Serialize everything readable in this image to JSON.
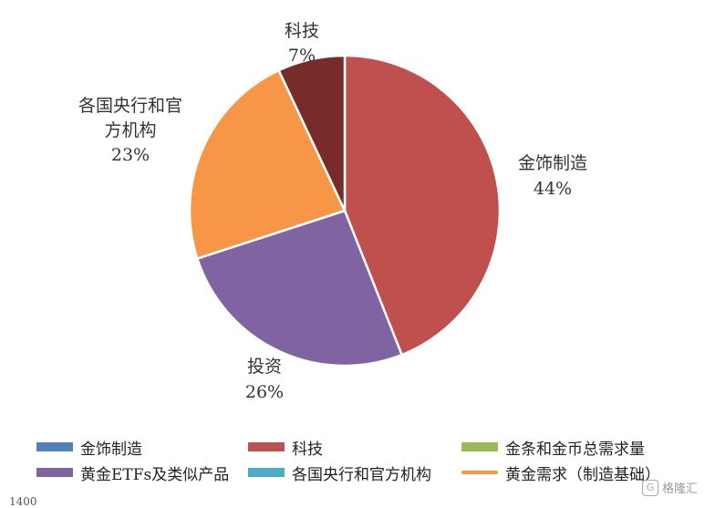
{
  "chart_data": {
    "type": "pie",
    "slices": [
      {
        "name": "金饰制造",
        "label": "金饰制造",
        "pct_text": "44%",
        "value": 44,
        "color": "#c0504d"
      },
      {
        "name": "投资",
        "label": "投资",
        "pct_text": "26%",
        "value": 26,
        "color": "#8064a2"
      },
      {
        "name": "各国央行和官方机构",
        "label": "各国央行和官\n方机构",
        "pct_text": "23%",
        "value": 23,
        "color": "#f79646"
      },
      {
        "name": "科技",
        "label": "科技",
        "pct_text": "7%",
        "value": 7,
        "color": "#772c2a"
      }
    ]
  },
  "legend": [
    {
      "label": "金饰制造",
      "color": "#4f81bd",
      "kind": "box"
    },
    {
      "label": "科技",
      "color": "#c0504d",
      "kind": "box"
    },
    {
      "label": "金条和金币总需求量",
      "color": "#9bbb59",
      "kind": "box"
    },
    {
      "label": "黄金ETFs及类似产品",
      "color": "#8064a2",
      "kind": "box"
    },
    {
      "label": "各国央行和官方机构",
      "color": "#4bacc6",
      "kind": "box"
    },
    {
      "label": "黄金需求（制造基础）",
      "color": "#f79646",
      "kind": "line"
    }
  ],
  "axis_stub": "1400",
  "watermark": "格隆汇"
}
